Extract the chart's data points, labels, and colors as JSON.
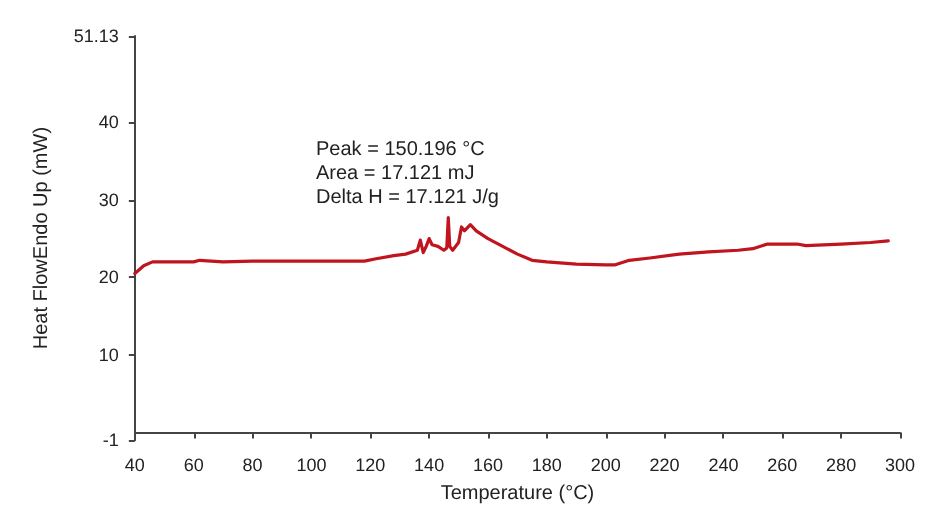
{
  "chart_data": {
    "type": "line",
    "xlabel": "Temperature (°C)",
    "ylabel": "Heat FlowEndo Up (mW)",
    "annotations": [
      "Peak = 150.196 °C",
      "Area = 17.121 mJ",
      "Delta H = 17.121 J/g"
    ],
    "x": [
      40,
      43,
      46,
      60,
      62,
      70,
      80,
      100,
      118,
      122,
      128,
      132,
      136,
      137,
      138,
      139,
      140,
      141,
      143,
      145,
      146,
      146.5,
      147,
      148,
      150,
      151,
      152,
      154,
      156,
      160,
      165,
      170,
      175,
      180,
      190,
      200,
      203,
      208,
      215,
      225,
      235,
      245,
      250,
      255,
      265,
      268,
      280,
      290,
      296
    ],
    "series": [
      {
        "color": "#c0141e",
        "values": [
          20.5,
          21.5,
          22,
          22,
          22.2,
          22,
          22.1,
          22.1,
          22.1,
          22.4,
          22.8,
          23,
          23.5,
          24.8,
          23.2,
          24,
          25,
          24.2,
          24,
          23.5,
          23.8,
          27.7,
          24,
          23.5,
          24.5,
          26.5,
          26,
          26.8,
          26,
          25,
          24,
          23,
          22.2,
          22,
          21.7,
          21.6,
          21.6,
          22.2,
          22.5,
          23,
          23.3,
          23.5,
          23.7,
          24.3,
          24.3,
          24.1,
          24.3,
          24.5,
          24.7
        ]
      }
    ],
    "xlim": [
      40,
      300
    ],
    "xticks": [
      40,
      60,
      80,
      100,
      120,
      140,
      160,
      180,
      200,
      220,
      240,
      260,
      280,
      300
    ],
    "ylim": [
      -1,
      51.13
    ],
    "yticks": [
      -1,
      10,
      20,
      30,
      40,
      51.13
    ],
    "grid": false,
    "marker": "none",
    "line_style": "solid"
  }
}
